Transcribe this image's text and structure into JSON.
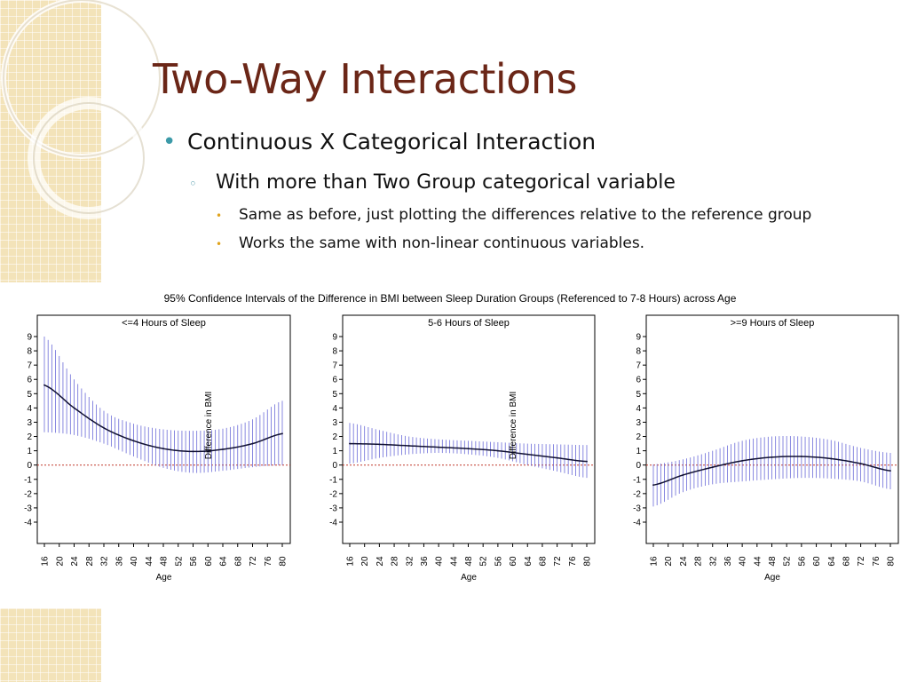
{
  "slide": {
    "title": "Two-Way Interactions",
    "bullets": {
      "level1": "Continuous X Categorical Interaction",
      "level2": "With more than Two Group categorical variable",
      "level3": [
        "Same as before, just plotting the differences relative to the reference group",
        "Works the same with non-linear continuous variables."
      ]
    },
    "markers": {
      "level1": "•",
      "level2": "◦",
      "level3": "•"
    },
    "colors": {
      "title": "#6b2617",
      "marker1": "#3c9aa8",
      "marker3": "#e0a31c",
      "deco_background": "#f3e3b9"
    }
  },
  "figure_title": "95% Confidence Intervals of the Difference in BMI between Sleep Duration Groups (Referenced to 7-8 Hours) across Age",
  "chart_data": [
    {
      "type": "line",
      "title": "<=4 Hours of Sleep",
      "xlabel": "Age",
      "ylabel": "Difference in BMI",
      "xlim": [
        16,
        80
      ],
      "ylim": [
        -4,
        9
      ],
      "x_ticks": [
        16,
        20,
        24,
        28,
        32,
        36,
        40,
        44,
        48,
        52,
        56,
        60,
        64,
        68,
        72,
        76,
        80
      ],
      "y_ticks": [
        -4,
        -3,
        -2,
        -1,
        0,
        1,
        2,
        3,
        4,
        5,
        6,
        7,
        8,
        9
      ],
      "reference_line": 0,
      "series": [
        {
          "x": [
            16,
            24,
            32,
            40,
            48,
            56,
            64,
            72,
            80
          ],
          "values": [
            5.6,
            4.0,
            2.6,
            1.7,
            1.15,
            0.95,
            1.1,
            1.5,
            2.2
          ]
        }
      ],
      "ci_lower": [
        2.3,
        2.1,
        1.5,
        0.6,
        -0.2,
        -0.55,
        -0.4,
        -0.15,
        0.0
      ],
      "ci_upper": [
        9.0,
        6.0,
        3.8,
        2.9,
        2.5,
        2.4,
        2.55,
        3.2,
        4.5
      ]
    },
    {
      "type": "line",
      "title": "5-6 Hours of Sleep",
      "xlabel": "Age",
      "ylabel": "Difference in BMI",
      "xlim": [
        16,
        80
      ],
      "ylim": [
        -4,
        9
      ],
      "x_ticks": [
        16,
        20,
        24,
        28,
        32,
        36,
        40,
        44,
        48,
        52,
        56,
        60,
        64,
        68,
        72,
        76,
        80
      ],
      "y_ticks": [
        -4,
        -3,
        -2,
        -1,
        0,
        1,
        2,
        3,
        4,
        5,
        6,
        7,
        8,
        9
      ],
      "reference_line": 0,
      "series": [
        {
          "x": [
            16,
            24,
            32,
            40,
            48,
            56,
            64,
            72,
            80
          ],
          "values": [
            1.5,
            1.45,
            1.35,
            1.25,
            1.15,
            1.0,
            0.75,
            0.5,
            0.25
          ]
        }
      ],
      "ci_lower": [
        0.1,
        0.5,
        0.75,
        0.85,
        0.75,
        0.5,
        0.0,
        -0.45,
        -0.9
      ],
      "ci_upper": [
        2.95,
        2.45,
        2.0,
        1.8,
        1.7,
        1.6,
        1.5,
        1.45,
        1.4
      ]
    },
    {
      "type": "line",
      "title": ">=9 Hours of Sleep",
      "xlabel": "Age",
      "ylabel": "",
      "xlim": [
        16,
        80
      ],
      "ylim": [
        -4,
        9
      ],
      "x_ticks": [
        16,
        20,
        24,
        28,
        32,
        36,
        40,
        44,
        48,
        52,
        56,
        60,
        64,
        68,
        72,
        76,
        80
      ],
      "y_ticks": [
        -4,
        -3,
        -2,
        -1,
        0,
        1,
        2,
        3,
        4,
        5,
        6,
        7,
        8,
        9
      ],
      "reference_line": 0,
      "series": [
        {
          "x": [
            16,
            24,
            32,
            40,
            48,
            56,
            64,
            72,
            80
          ],
          "values": [
            -1.4,
            -0.7,
            -0.15,
            0.3,
            0.55,
            0.6,
            0.45,
            0.1,
            -0.4
          ]
        }
      ],
      "ci_lower": [
        -2.9,
        -1.9,
        -1.35,
        -1.15,
        -1.0,
        -0.9,
        -0.95,
        -1.15,
        -1.7
      ],
      "ci_upper": [
        0.05,
        0.4,
        1.0,
        1.7,
        2.0,
        2.0,
        1.75,
        1.2,
        0.85
      ]
    }
  ]
}
